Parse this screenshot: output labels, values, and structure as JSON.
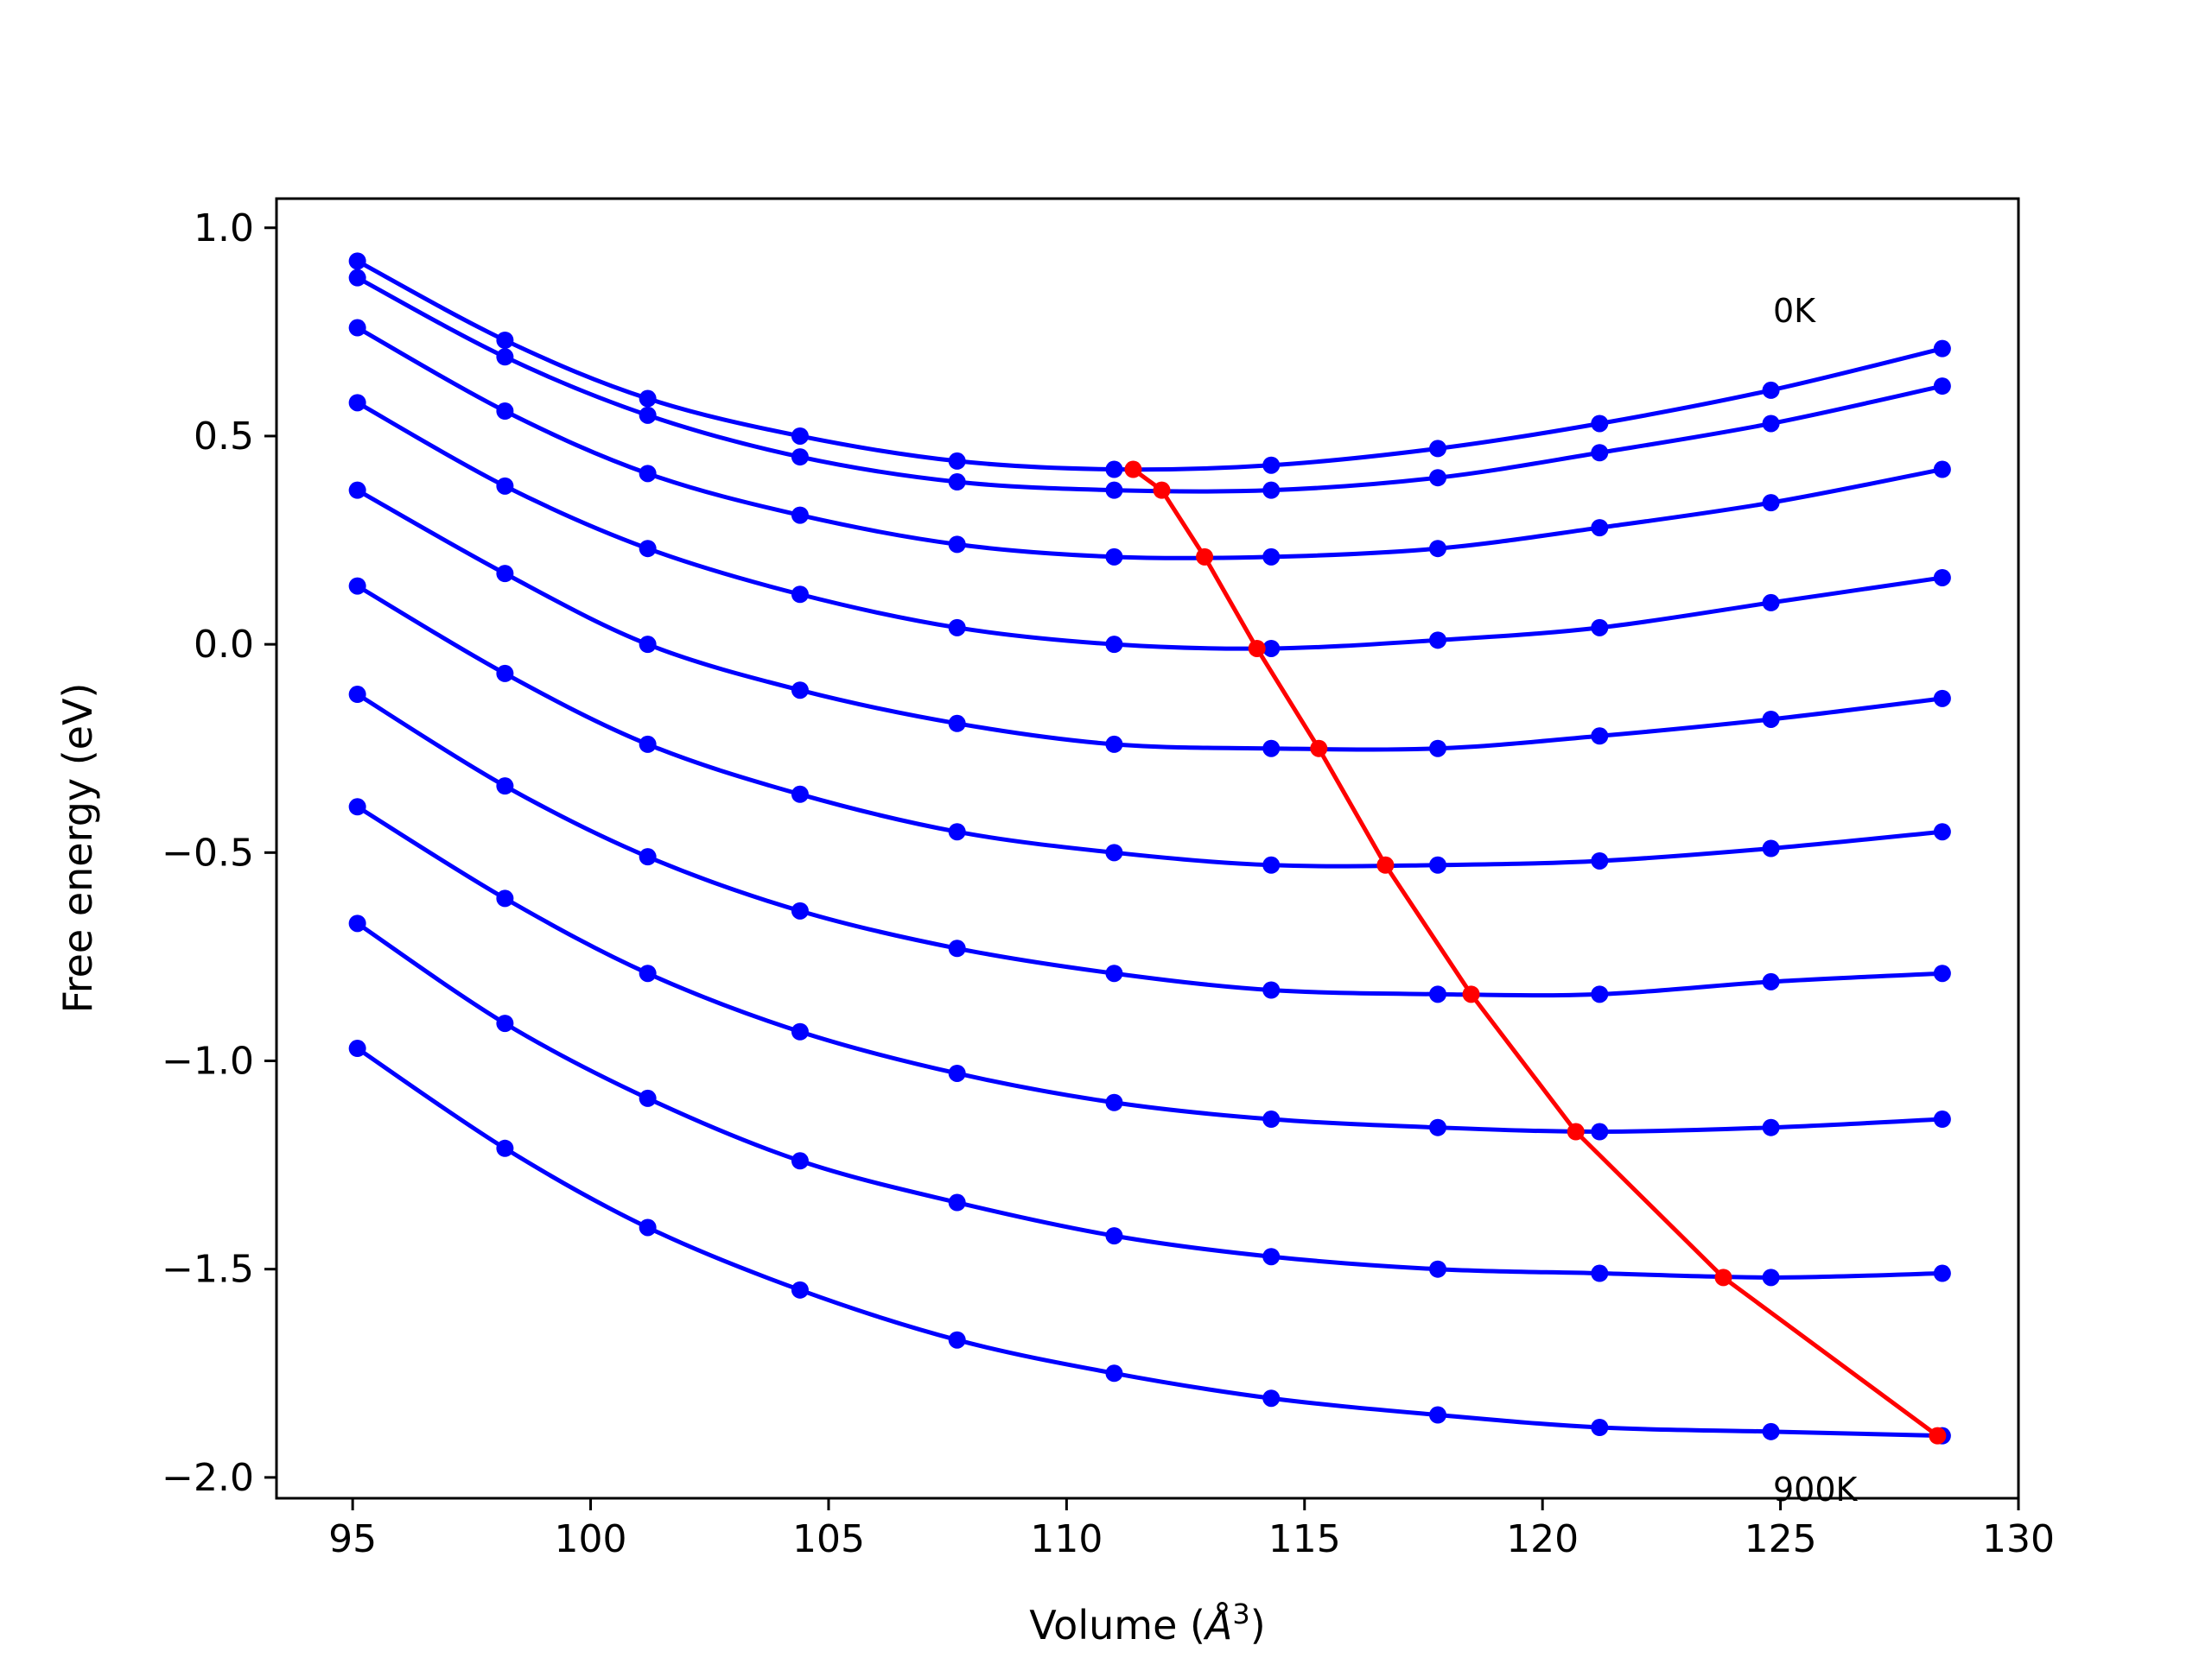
{
  "chart_data": {
    "type": "line",
    "xlabel": "Volume (",
    "xlabel_unit": "Å",
    "xlabel_sup": "3",
    "xlabel_close": ")",
    "ylabel": "Free energy (eV)",
    "xlim": [
      93.4,
      130.0
    ],
    "ylim": [
      -2.05,
      1.07
    ],
    "xticks": [
      95,
      100,
      105,
      110,
      115,
      120,
      125,
      130
    ],
    "yticks": [
      1.0,
      0.5,
      0.0,
      -0.5,
      -1.0,
      -1.5,
      -2.0
    ],
    "ytick_labels": [
      "1.0",
      "0.5",
      "0.0",
      "−0.5",
      "−1.0",
      "−1.5",
      "−2.0"
    ],
    "grid": false,
    "annotations": [
      {
        "text": "0K",
        "x": 124.8,
        "y": 0.76
      },
      {
        "text": "900K",
        "x": 124.8,
        "y": -2.04
      }
    ],
    "colors": {
      "curves": "#0000ff",
      "minimum_line": "#ff0000"
    },
    "x": [
      95.1,
      98.2,
      101.2,
      104.4,
      107.7,
      111.0,
      114.3,
      117.8,
      121.2,
      124.8,
      128.4
    ],
    "series": [
      {
        "values": [
          0.92,
          0.73,
          0.59,
          0.5,
          0.44,
          0.42,
          0.43,
          0.47,
          0.53,
          0.61,
          0.71
        ]
      },
      {
        "values": [
          0.88,
          0.69,
          0.55,
          0.45,
          0.39,
          0.37,
          0.37,
          0.4,
          0.46,
          0.53,
          0.62
        ]
      },
      {
        "values": [
          0.76,
          0.56,
          0.41,
          0.31,
          0.24,
          0.21,
          0.21,
          0.23,
          0.28,
          0.34,
          0.42
        ]
      },
      {
        "values": [
          0.58,
          0.38,
          0.23,
          0.12,
          0.04,
          0.0,
          -0.01,
          0.01,
          0.04,
          0.1,
          0.16
        ]
      },
      {
        "values": [
          0.37,
          0.17,
          0.0,
          -0.11,
          -0.19,
          -0.24,
          -0.25,
          -0.25,
          -0.22,
          -0.18,
          -0.13
        ]
      },
      {
        "values": [
          0.14,
          -0.07,
          -0.24,
          -0.36,
          -0.45,
          -0.5,
          -0.53,
          -0.53,
          -0.52,
          -0.49,
          -0.45
        ]
      },
      {
        "values": [
          -0.12,
          -0.34,
          -0.51,
          -0.64,
          -0.73,
          -0.79,
          -0.83,
          -0.84,
          -0.84,
          -0.81,
          -0.79
        ]
      },
      {
        "values": [
          -0.39,
          -0.61,
          -0.79,
          -0.93,
          -1.03,
          -1.1,
          -1.14,
          -1.16,
          -1.17,
          -1.16,
          -1.14
        ]
      },
      {
        "values": [
          -0.67,
          -0.91,
          -1.09,
          -1.24,
          -1.34,
          -1.42,
          -1.47,
          -1.5,
          -1.51,
          -1.52,
          -1.51
        ]
      },
      {
        "values": [
          -0.97,
          -1.21,
          -1.4,
          -1.55,
          -1.67,
          -1.75,
          -1.81,
          -1.85,
          -1.88,
          -1.89,
          -1.9
        ]
      }
    ],
    "minima": {
      "x": [
        111.4,
        112.0,
        112.9,
        114.0,
        115.3,
        116.7,
        118.5,
        120.7,
        123.8,
        128.3
      ],
      "y": [
        0.42,
        0.37,
        0.21,
        -0.01,
        -0.25,
        -0.53,
        -0.84,
        -1.17,
        -1.52,
        -1.9
      ]
    }
  }
}
